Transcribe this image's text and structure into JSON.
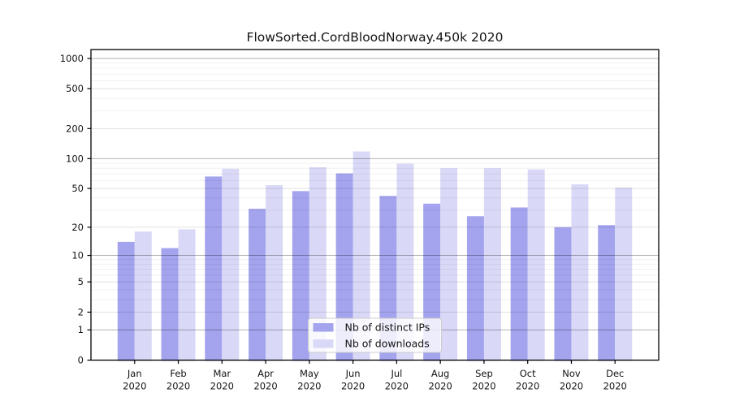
{
  "chart_data": {
    "type": "bar",
    "title": "FlowSorted.CordBloodNorway.450k 2020",
    "x_axis_year": "2020",
    "categories": [
      "Jan",
      "Feb",
      "Mar",
      "Apr",
      "May",
      "Jun",
      "Jul",
      "Aug",
      "Sep",
      "Oct",
      "Nov",
      "Dec"
    ],
    "series": [
      {
        "name": "Nb of distinct IPs",
        "color": "#a3a3ee",
        "values": [
          14,
          12,
          66,
          31,
          47,
          71,
          42,
          35,
          26,
          32,
          20,
          21
        ]
      },
      {
        "name": "Nb of downloads",
        "color": "#d9d9f7",
        "values": [
          18,
          19,
          79,
          54,
          82,
          118,
          89,
          80,
          80,
          78,
          55,
          51
        ]
      }
    ],
    "y_axis": {
      "scale": "log1p",
      "ticks": [
        0,
        1,
        2,
        5,
        10,
        20,
        50,
        100,
        200,
        500,
        1000
      ],
      "range": [
        0,
        1220
      ],
      "grid": true
    },
    "legend": {
      "position": "lower-center"
    }
  }
}
